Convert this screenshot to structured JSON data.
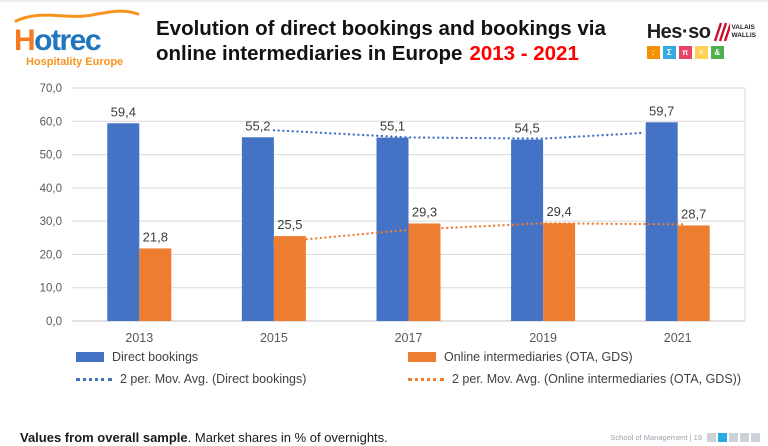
{
  "header": {
    "hotrec_logo": {
      "word_start": "H",
      "word_rest": "otrec",
      "tagline": "Hospitality Europe",
      "orange": "#F7941D",
      "blue": "#2175BC"
    },
    "title": {
      "line1": "Evolution of direct bookings and bookings via",
      "line2": "online intermediaries in Europe",
      "years": "2013 - 2021",
      "years_color": "#FF0000"
    },
    "hesso_logo": {
      "brand": "Hes·so",
      "region_top": "VALAIS",
      "region_bottom": "WALLIS",
      "slash_color": "#C8102E",
      "field_squares": [
        {
          "color": "#F39200",
          "glyph": ":"
        },
        {
          "color": "#36A9E1",
          "glyph": "Σ"
        },
        {
          "color": "#E6446B",
          "glyph": "π"
        },
        {
          "color": "#FFD255",
          "glyph": "="
        },
        {
          "color": "#4FAE4E",
          "glyph": "&"
        }
      ]
    }
  },
  "chart_data": {
    "type": "bar",
    "title": "Evolution of direct bookings and bookings via online intermediaries in Europe 2013 - 2021",
    "categories": [
      "2013",
      "2015",
      "2017",
      "2019",
      "2021"
    ],
    "series": [
      {
        "name": "Direct bookings",
        "color": "#4472C4",
        "values": [
          59.4,
          55.2,
          55.1,
          54.5,
          59.7
        ]
      },
      {
        "name": "Online intermediaries (OTA, GDS)",
        "color": "#ED7D31",
        "values": [
          21.8,
          25.5,
          29.3,
          29.4,
          28.7
        ]
      }
    ],
    "trendlines": [
      {
        "name": "2 per. Mov. Avg. (Direct bookings)",
        "color": "#4472C4",
        "x": [
          "2015",
          "2017",
          "2019",
          "2021"
        ],
        "values": [
          57.3,
          55.15,
          54.8,
          57.1
        ]
      },
      {
        "name": "2 per. Mov. Avg. (Online intermediaries (OTA, GDS))",
        "color": "#ED7D31",
        "x": [
          "2015",
          "2017",
          "2019",
          "2021"
        ],
        "values": [
          23.65,
          27.4,
          29.35,
          29.05
        ]
      }
    ],
    "xlabel": "",
    "ylabel": "",
    "ylim": [
      0,
      70
    ],
    "ytick_step": 10,
    "decimal_separator": ",",
    "grid": true,
    "data_labels": true,
    "legend_position": "bottom"
  },
  "legend": {
    "items": [
      {
        "label": "Direct bookings",
        "swatch": "bar",
        "color": "#4472C4"
      },
      {
        "label": "Online intermediaries (OTA, GDS)",
        "swatch": "bar",
        "color": "#ED7D31"
      },
      {
        "label": "2 per. Mov. Avg. (Direct bookings)",
        "swatch": "dotted",
        "color": "#4472C4"
      },
      {
        "label": "2 per. Mov. Avg. (Online intermediaries (OTA, GDS))",
        "swatch": "dotted",
        "color": "#ED7D31"
      }
    ]
  },
  "footer": {
    "note_bold": "Values from overall sample",
    "note_rest": ". Market shares in % of overnights.",
    "slide_label": "School of Management |  19",
    "nav_squares": [
      {
        "color": "#ccd2d7"
      },
      {
        "color": "#29ABE2"
      },
      {
        "color": "#ccd2d7"
      },
      {
        "color": "#ccd2d7"
      },
      {
        "color": "#ccd2d7"
      }
    ]
  }
}
